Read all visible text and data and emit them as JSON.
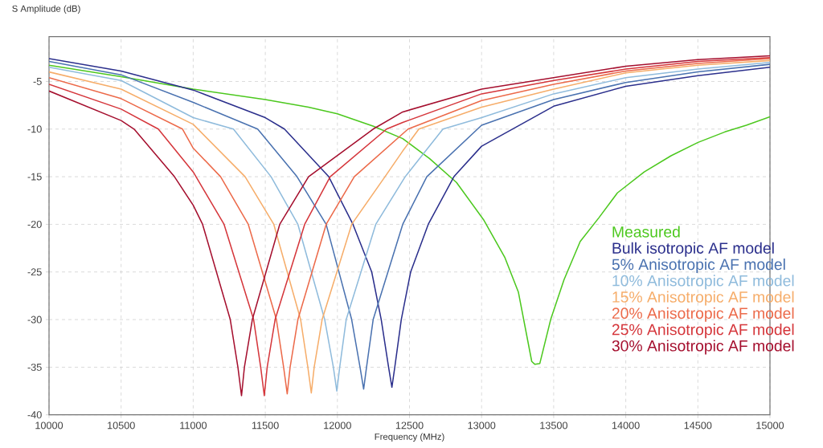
{
  "chart_data": {
    "type": "line",
    "xlabel": "Frequency (MHz)",
    "ylabel": "S Amplitude (dB)",
    "xlim": [
      10000,
      15000
    ],
    "ylim": [
      -40,
      -0.3
    ],
    "xticks": [
      10000,
      10500,
      11000,
      11500,
      12000,
      12500,
      13000,
      13500,
      14000,
      14500,
      15000
    ],
    "yticks": [
      -5,
      -10,
      -15,
      -20,
      -25,
      -30,
      -35,
      -40
    ],
    "grid": true,
    "legend": "bottom right",
    "series": [
      {
        "name": "Measured",
        "color": "#4cc81e",
        "x": [
          10000,
          10500,
          11000,
          11500,
          11800,
          12000,
          12250,
          12453,
          12640,
          12826,
          13013,
          13162,
          13255,
          13348,
          13370,
          13404,
          13479,
          13572,
          13684,
          13814,
          13942,
          14128,
          14314,
          14501,
          14687,
          14836,
          15000
        ],
        "values": [
          -3.3,
          -4.5,
          -5.8,
          -6.9,
          -7.7,
          -8.4,
          -9.7,
          -11,
          -13.1,
          -15.6,
          -19.5,
          -23.5,
          -27.1,
          -34.4,
          -34.7,
          -34.6,
          -30,
          -25.8,
          -21.8,
          -19.3,
          -16.7,
          -14.5,
          -12.8,
          -11.4,
          -10.3,
          -9.6,
          -8.7
        ]
      },
      {
        "name": "Bulk isotropic AF model",
        "color": "#2b2f8c",
        "x": [
          10000,
          10500,
          11000,
          11500,
          11633,
          11940,
          12108,
          12238,
          12304,
          12355,
          12378,
          12398,
          12443,
          12508,
          12630,
          12808,
          13000,
          13500,
          14000,
          14500,
          15000
        ],
        "values": [
          -2.6,
          -3.9,
          -5.9,
          -8.8,
          -10,
          -15,
          -20,
          -25,
          -30,
          -35,
          -37.1,
          -35,
          -30,
          -25,
          -20,
          -15,
          -11.8,
          -7.6,
          -5.5,
          -4.4,
          -3.5
        ]
      },
      {
        "name": "5% Anisotropic AF model",
        "color": "#4a72b0",
        "x": [
          10000,
          10500,
          11000,
          11447,
          11720,
          11922,
          12099,
          12157,
          12182,
          12202,
          12248,
          12453,
          12620,
          13000,
          13500,
          14000,
          14500,
          15000
        ],
        "values": [
          -2.9,
          -4.3,
          -7.2,
          -10,
          -15,
          -20,
          -30,
          -35,
          -37.3,
          -35,
          -30,
          -20,
          -15,
          -9.6,
          -6.9,
          -5.1,
          -4.0,
          -3.2
        ]
      },
      {
        "name": "10% Anisotropic AF model",
        "color": "#8fbbdc",
        "x": [
          10000,
          10500,
          11000,
          11279,
          11540,
          11726,
          11912,
          11972,
          11996,
          12016,
          12061,
          12266,
          12470,
          12732,
          13000,
          13500,
          14000,
          14500,
          15000
        ],
        "values": [
          -3.5,
          -4.9,
          -8.8,
          -10,
          -15,
          -20,
          -30,
          -35,
          -37.5,
          -35,
          -30,
          -20,
          -15,
          -10,
          -8.8,
          -6.3,
          -4.6,
          -3.7,
          -3.0
        ]
      },
      {
        "name": "15% Anisotropic AF model",
        "color": "#f6ad6a",
        "x": [
          10000,
          10500,
          11000,
          11360,
          11559,
          11745,
          11795,
          11819,
          11839,
          11894,
          12099,
          12330,
          12453,
          12565,
          13000,
          13500,
          14000,
          14500,
          15000
        ],
        "values": [
          -4.0,
          -5.8,
          -9.5,
          -15,
          -20,
          -30,
          -35,
          -37.7,
          -35,
          -30,
          -20,
          -15,
          -12.3,
          -10,
          -7.7,
          -5.8,
          -4.1,
          -3.3,
          -2.8
        ]
      },
      {
        "name": "20% Anisotropic AF model",
        "color": "#ec6a4a",
        "x": [
          10000,
          10500,
          10926,
          11000,
          11190,
          11382,
          11577,
          11627,
          11652,
          11672,
          11726,
          11922,
          12117,
          12490,
          13000,
          13500,
          14000,
          14500,
          15000
        ],
        "values": [
          -4.6,
          -6.8,
          -10,
          -12,
          -15,
          -20,
          -30,
          -35,
          -37.8,
          -35,
          -30,
          -20,
          -15,
          -10,
          -7.0,
          -5.3,
          -3.9,
          -3.1,
          -2.6
        ]
      },
      {
        "name": "25% Anisotropic AF model",
        "color": "#d5363b",
        "x": [
          10000,
          10500,
          10758,
          11000,
          11214,
          11419,
          11468,
          11493,
          11513,
          11568,
          11773,
          11950,
          12341,
          12453,
          13000,
          13500,
          14000,
          14500,
          15000
        ],
        "values": [
          -5.3,
          -7.9,
          -10,
          -14.5,
          -20,
          -30,
          -35,
          -38.0,
          -35,
          -30,
          -20,
          -15,
          -10,
          -9.3,
          -6.3,
          -4.9,
          -3.7,
          -2.9,
          -2.5
        ]
      },
      {
        "name": "30% Anisotropic AF model",
        "color": "#a50f2e",
        "x": [
          10000,
          10500,
          10590,
          10870,
          11000,
          11065,
          11257,
          11310,
          11335,
          11355,
          11410,
          11600,
          11800,
          12248,
          12453,
          13000,
          13500,
          14000,
          14500,
          15000
        ],
        "values": [
          -6.0,
          -9.1,
          -10,
          -15,
          -18,
          -20,
          -30,
          -35,
          -38.0,
          -35,
          -30,
          -20,
          -15,
          -10,
          -8.2,
          -5.8,
          -4.6,
          -3.4,
          -2.7,
          -2.3
        ]
      }
    ]
  }
}
